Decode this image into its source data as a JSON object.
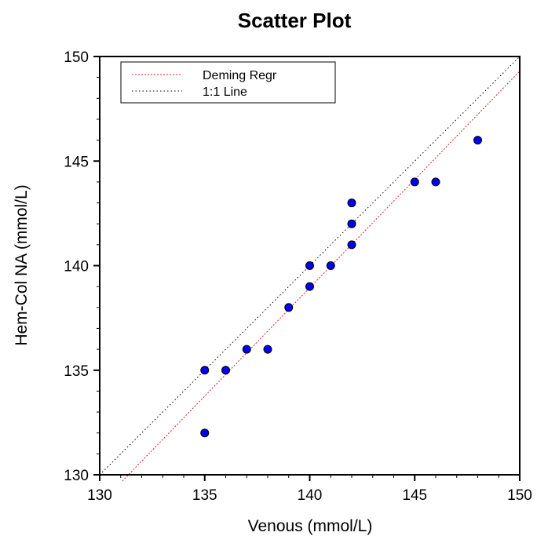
{
  "chart_data": {
    "type": "scatter",
    "title": "Scatter Plot",
    "xlabel": "Venous (mmol/L)",
    "ylabel": "Hem-Col NA (mmol/L)",
    "xlim": [
      130,
      150
    ],
    "ylim": [
      130,
      150
    ],
    "x_ticks": [
      "130",
      "135",
      "140",
      "145",
      "150"
    ],
    "y_ticks": [
      "130",
      "135",
      "140",
      "145",
      "150"
    ],
    "grid": false,
    "legend_position": "top-left",
    "legend": [
      {
        "label": "Deming Regr",
        "color": "#e02020",
        "style": "dotted"
      },
      {
        "label": "1:1 Line",
        "color": "#000000",
        "style": "dotted"
      }
    ],
    "points": {
      "color": "#0000ee",
      "x": [
        135,
        135,
        136,
        137,
        138,
        139,
        140,
        140,
        141,
        142,
        142,
        142,
        145,
        146,
        148
      ],
      "y": [
        132,
        135,
        135,
        136,
        136,
        138,
        139,
        140,
        140,
        141,
        142,
        143,
        144,
        144,
        146
      ]
    },
    "deming_line": {
      "x": [
        131.08,
        150
      ],
      "y": [
        129.7,
        149.3
      ]
    },
    "identity_line": {
      "x": [
        130,
        150
      ],
      "y": [
        130,
        150
      ]
    }
  }
}
